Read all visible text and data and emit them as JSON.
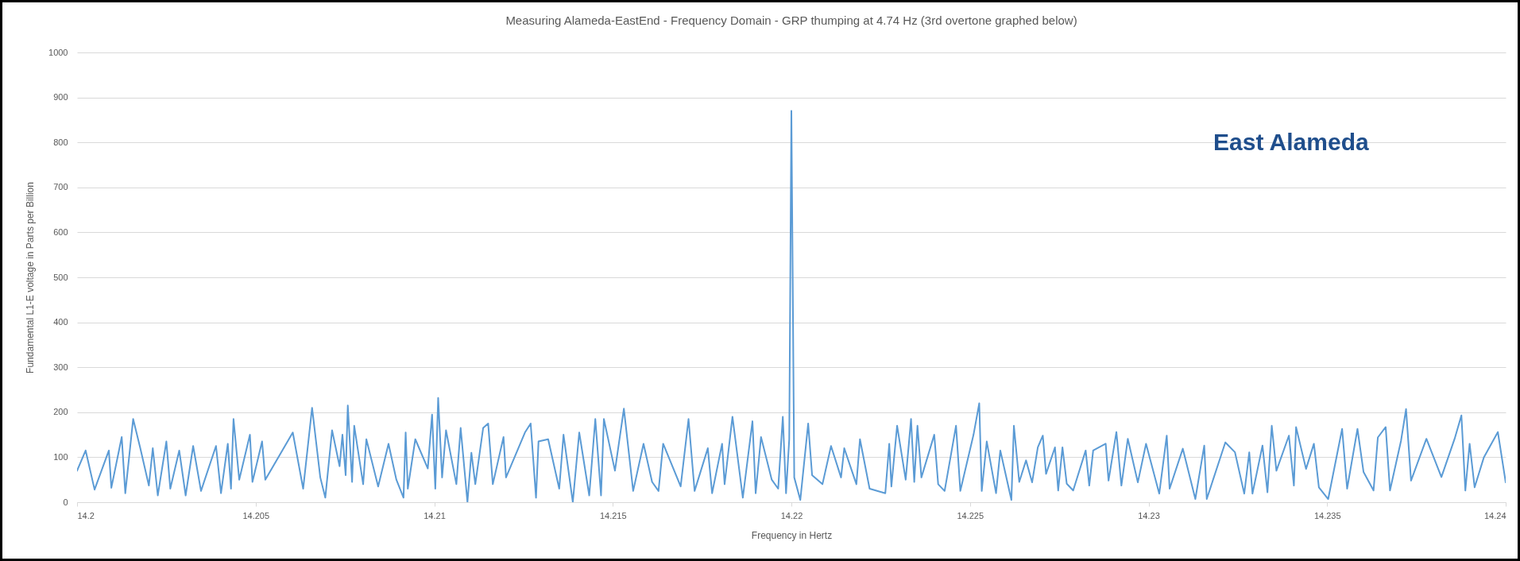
{
  "chart_data": {
    "type": "line",
    "title": "Measuring Alameda-EastEnd - Frequency Domain - GRP thumping at 4.74 Hz (3rd overtone graphed below)",
    "xlabel": "Frequency in Hertz",
    "ylabel": "Fundamental L1-E voltage in Parts per Billion",
    "annotations": [
      "East Alameda"
    ],
    "xlim": [
      14.2,
      14.24
    ],
    "xticks": [
      14.2,
      14.205,
      14.21,
      14.215,
      14.22,
      14.225,
      14.23,
      14.235,
      14.24
    ],
    "ylim": [
      0,
      1000
    ],
    "yticks": [
      0,
      100,
      200,
      300,
      400,
      500,
      600,
      700,
      800,
      900,
      1000
    ],
    "grid": "y",
    "marker": "none",
    "line_style": "solid",
    "series": [
      {
        "color": "#5b9bd5",
        "x": [
          14.2,
          14.20024,
          14.20049,
          14.20089,
          14.20096,
          14.20125,
          14.20135,
          14.20157,
          14.20177,
          14.20201,
          14.20212,
          14.20226,
          14.2025,
          14.20261,
          14.20286,
          14.20304,
          14.20325,
          14.20347,
          14.20389,
          14.20403,
          14.20422,
          14.20431,
          14.20438,
          14.20454,
          14.20484,
          14.20491,
          14.20518,
          14.20527,
          14.20604,
          14.20633,
          14.20658,
          14.20681,
          14.20695,
          14.20714,
          14.20735,
          14.20743,
          14.20752,
          14.20758,
          14.2077,
          14.20776,
          14.20801,
          14.2081,
          14.20843,
          14.20872,
          14.20894,
          14.20914,
          14.2092,
          14.20926,
          14.20947,
          14.20982,
          14.20994,
          14.21003,
          14.21011,
          14.21022,
          14.21033,
          14.21062,
          14.21074,
          14.21093,
          14.21104,
          14.21115,
          14.21137,
          14.21151,
          14.21164,
          14.21194,
          14.21201,
          14.21254,
          14.2127,
          14.21285,
          14.21292,
          14.21319,
          14.2135,
          14.21362,
          14.21388,
          14.21406,
          14.21434,
          14.21451,
          14.21467,
          14.21475,
          14.21506,
          14.21531,
          14.21557,
          14.21586,
          14.2161,
          14.21628,
          14.21641,
          14.2169,
          14.21712,
          14.21729,
          14.21766,
          14.21778,
          14.21806,
          14.21813,
          14.21835,
          14.21864,
          14.21891,
          14.219,
          14.21915,
          14.21945,
          14.21963,
          14.21976,
          14.21985,
          14.21994,
          14.22,
          14.22008,
          14.22025,
          14.22047,
          14.22058,
          14.22087,
          14.22111,
          14.22139,
          14.22148,
          14.22182,
          14.22192,
          14.22219,
          14.22263,
          14.22274,
          14.2228,
          14.22296,
          14.2232,
          14.22335,
          14.22344,
          14.22353,
          14.22364,
          14.224,
          14.22411,
          14.22429,
          14.22461,
          14.22473,
          14.2251,
          14.22526,
          14.22533,
          14.22547,
          14.22573,
          14.22585,
          14.22616,
          14.22623,
          14.22638,
          14.22657,
          14.22674,
          14.2269,
          14.22704,
          14.22713,
          14.22738,
          14.22747,
          14.22759,
          14.22771,
          14.22789,
          14.22824,
          14.22834,
          14.22845,
          14.2288,
          14.22888,
          14.2291,
          14.22924,
          14.22942,
          14.2297,
          14.22993,
          14.2303,
          14.23051,
          14.23059,
          14.23096,
          14.23131,
          14.23156,
          14.23163,
          14.23215,
          14.23242,
          14.23268,
          14.23282,
          14.23291,
          14.23319,
          14.23333,
          14.23345,
          14.23358,
          14.23393,
          14.23407,
          14.23413,
          14.23441,
          14.23463,
          14.23477,
          14.23503,
          14.23542,
          14.23556,
          14.23585,
          14.23602,
          14.2363,
          14.23642,
          14.23664,
          14.23676,
          14.23707,
          14.23721,
          14.23735,
          14.23778,
          14.2382,
          14.23857,
          14.23876,
          14.23887,
          14.23899,
          14.23913,
          14.23939,
          14.23978,
          14.24
        ],
        "values": [
          70,
          115,
          28,
          115,
          32,
          145,
          20,
          185,
          120,
          37,
          120,
          15,
          135,
          30,
          115,
          15,
          125,
          25,
          125,
          20,
          130,
          30,
          185,
          50,
          150,
          45,
          135,
          50,
          155,
          30,
          210,
          55,
          10,
          160,
          80,
          150,
          60,
          215,
          45,
          170,
          40,
          140,
          35,
          130,
          50,
          10,
          155,
          30,
          140,
          75,
          195,
          30,
          232,
          55,
          160,
          40,
          165,
          0,
          110,
          40,
          165,
          175,
          40,
          145,
          55,
          155,
          175,
          10,
          135,
          140,
          30,
          150,
          0,
          155,
          15,
          185,
          15,
          185,
          70,
          208,
          25,
          130,
          45,
          25,
          130,
          35,
          185,
          25,
          120,
          20,
          130,
          40,
          190,
          10,
          180,
          20,
          145,
          50,
          30,
          190,
          20,
          140,
          870,
          55,
          5,
          175,
          60,
          40,
          125,
          55,
          120,
          40,
          140,
          30,
          20,
          130,
          35,
          170,
          50,
          185,
          45,
          170,
          55,
          150,
          40,
          25,
          170,
          25,
          150,
          220,
          25,
          135,
          20,
          115,
          5,
          170,
          45,
          93,
          44,
          122,
          148,
          63,
          122,
          26,
          122,
          41,
          26,
          115,
          37,
          115,
          130,
          48,
          156,
          37,
          141,
          44,
          130,
          19,
          148,
          30,
          119,
          7,
          126,
          7,
          133,
          111,
          19,
          111,
          19,
          126,
          22,
          170,
          70,
          148,
          37,
          167,
          74,
          130,
          33,
          7,
          163,
          30,
          163,
          67,
          26,
          144,
          167,
          26,
          137,
          207,
          48,
          141,
          56,
          141,
          193,
          26,
          130,
          33,
          100,
          156,
          44
        ]
      }
    ]
  }
}
